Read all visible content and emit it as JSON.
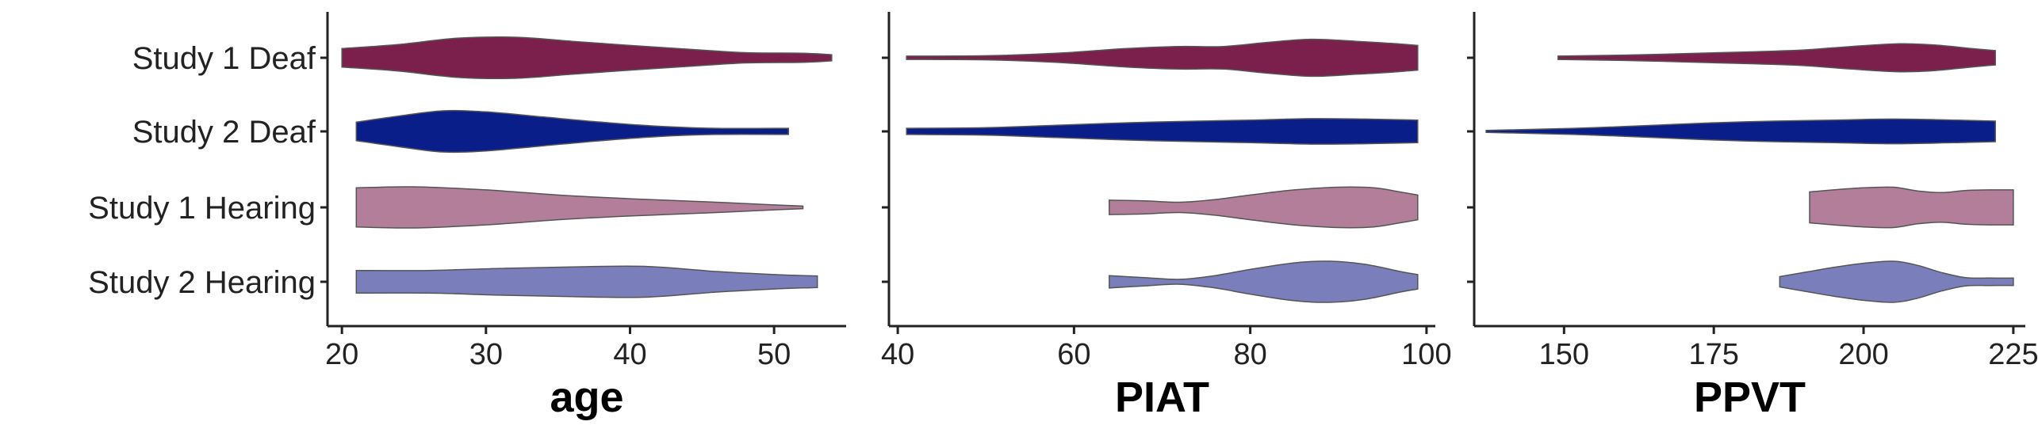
{
  "chart_data": {
    "type": "violin",
    "categories": [
      "Study 1 Deaf",
      "Study 2 Deaf",
      "Study 1 Hearing",
      "Study 2 Hearing"
    ],
    "colors": {
      "Study 1 Deaf": "#7B1F4C",
      "Study 2 Deaf": "#0A1E8A",
      "Study 1 Hearing": "#B37E9A",
      "Study 2 Hearing": "#7A7FBB"
    },
    "grid": false,
    "legend": "none",
    "panels": [
      {
        "xlabel": "age",
        "xlim": [
          19,
          55
        ],
        "xticks": [
          20,
          30,
          40,
          50
        ],
        "violins": [
          {
            "category": "Study 1 Deaf",
            "range": [
              20,
              54
            ],
            "density": [
              [
                20,
                0.45
              ],
              [
                24,
                0.65
              ],
              [
                28,
                0.95
              ],
              [
                32,
                1.0
              ],
              [
                36,
                0.8
              ],
              [
                40,
                0.6
              ],
              [
                44,
                0.42
              ],
              [
                48,
                0.25
              ],
              [
                52,
                0.22
              ],
              [
                54,
                0.15
              ]
            ]
          },
          {
            "category": "Study 2 Deaf",
            "range": [
              21,
              51
            ],
            "density": [
              [
                21,
                0.45
              ],
              [
                24,
                0.75
              ],
              [
                27,
                1.0
              ],
              [
                30,
                0.95
              ],
              [
                34,
                0.7
              ],
              [
                38,
                0.45
              ],
              [
                42,
                0.25
              ],
              [
                46,
                0.15
              ],
              [
                51,
                0.15
              ]
            ]
          },
          {
            "category": "Study 1 Hearing",
            "range": [
              21,
              52
            ],
            "density": [
              [
                21,
                0.95
              ],
              [
                25,
                1.0
              ],
              [
                30,
                0.85
              ],
              [
                35,
                0.6
              ],
              [
                40,
                0.42
              ],
              [
                45,
                0.28
              ],
              [
                50,
                0.12
              ],
              [
                52,
                0.06
              ]
            ]
          },
          {
            "category": "Study 2 Hearing",
            "range": [
              21,
              53
            ],
            "density": [
              [
                21,
                0.55
              ],
              [
                26,
                0.55
              ],
              [
                31,
                0.65
              ],
              [
                36,
                0.72
              ],
              [
                41,
                0.75
              ],
              [
                46,
                0.5
              ],
              [
                50,
                0.35
              ],
              [
                53,
                0.28
              ]
            ]
          }
        ]
      },
      {
        "xlabel": "PIAT",
        "xlim": [
          39,
          101
        ],
        "xticks": [
          40,
          60,
          80,
          100
        ],
        "violins": [
          {
            "category": "Study 1 Deaf",
            "range": [
              41,
              99
            ],
            "density": [
              [
                41,
                0.08
              ],
              [
                50,
                0.1
              ],
              [
                58,
                0.22
              ],
              [
                66,
                0.45
              ],
              [
                72,
                0.55
              ],
              [
                77,
                0.55
              ],
              [
                82,
                0.75
              ],
              [
                87,
                0.9
              ],
              [
                92,
                0.8
              ],
              [
                96,
                0.7
              ],
              [
                99,
                0.6
              ]
            ]
          },
          {
            "category": "Study 2 Deaf",
            "range": [
              41,
              99
            ],
            "density": [
              [
                41,
                0.15
              ],
              [
                50,
                0.18
              ],
              [
                58,
                0.3
              ],
              [
                66,
                0.42
              ],
              [
                74,
                0.5
              ],
              [
                80,
                0.55
              ],
              [
                87,
                0.62
              ],
              [
                93,
                0.6
              ],
              [
                99,
                0.55
              ]
            ]
          },
          {
            "category": "Study 1 Hearing",
            "range": [
              64,
              99
            ],
            "density": [
              [
                64,
                0.35
              ],
              [
                68,
                0.32
              ],
              [
                72,
                0.25
              ],
              [
                76,
                0.38
              ],
              [
                80,
                0.6
              ],
              [
                85,
                0.85
              ],
              [
                90,
                0.98
              ],
              [
                94,
                0.95
              ],
              [
                97,
                0.75
              ],
              [
                99,
                0.6
              ]
            ]
          },
          {
            "category": "Study 2 Hearing",
            "range": [
              64,
              99
            ],
            "density": [
              [
                64,
                0.3
              ],
              [
                68,
                0.2
              ],
              [
                72,
                0.12
              ],
              [
                76,
                0.3
              ],
              [
                80,
                0.6
              ],
              [
                85,
                0.92
              ],
              [
                89,
                1.0
              ],
              [
                93,
                0.85
              ],
              [
                97,
                0.5
              ],
              [
                99,
                0.35
              ]
            ]
          }
        ]
      },
      {
        "xlabel": "PPVT",
        "xlim": [
          135,
          227
        ],
        "xticks": [
          150,
          175,
          200,
          225
        ],
        "violins": [
          {
            "category": "Study 1 Deaf",
            "range": [
              149,
              222
            ],
            "density": [
              [
                149,
                0.08
              ],
              [
                160,
                0.13
              ],
              [
                170,
                0.2
              ],
              [
                180,
                0.28
              ],
              [
                190,
                0.38
              ],
              [
                198,
                0.55
              ],
              [
                206,
                0.68
              ],
              [
                212,
                0.62
              ],
              [
                218,
                0.45
              ],
              [
                222,
                0.35
              ]
            ]
          },
          {
            "category": "Study 2 Deaf",
            "range": [
              137,
              222
            ],
            "density": [
              [
                137,
                0.05
              ],
              [
                145,
                0.1
              ],
              [
                155,
                0.18
              ],
              [
                165,
                0.3
              ],
              [
                175,
                0.42
              ],
              [
                185,
                0.5
              ],
              [
                195,
                0.55
              ],
              [
                205,
                0.6
              ],
              [
                215,
                0.55
              ],
              [
                222,
                0.5
              ]
            ]
          },
          {
            "category": "Study 1 Hearing",
            "range": [
              191,
              225
            ],
            "density": [
              [
                191,
                0.75
              ],
              [
                195,
                0.85
              ],
              [
                200,
                0.95
              ],
              [
                205,
                0.98
              ],
              [
                209,
                0.8
              ],
              [
                213,
                0.72
              ],
              [
                217,
                0.82
              ],
              [
                221,
                0.85
              ],
              [
                225,
                0.85
              ]
            ]
          },
          {
            "category": "Study 2 Hearing",
            "range": [
              186,
              225
            ],
            "density": [
              [
                186,
                0.25
              ],
              [
                190,
                0.45
              ],
              [
                195,
                0.7
              ],
              [
                200,
                0.9
              ],
              [
                205,
                1.0
              ],
              [
                209,
                0.8
              ],
              [
                213,
                0.45
              ],
              [
                217,
                0.2
              ],
              [
                221,
                0.18
              ],
              [
                225,
                0.18
              ]
            ]
          }
        ]
      }
    ]
  }
}
